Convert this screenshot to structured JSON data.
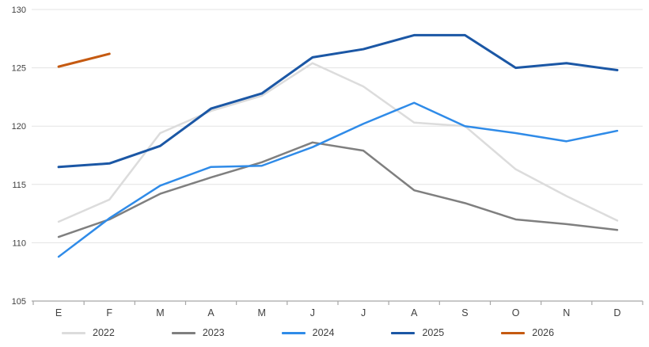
{
  "chart_data": {
    "type": "line",
    "title": "",
    "xlabel": "",
    "ylabel": "",
    "categories": [
      "E",
      "F",
      "M",
      "A",
      "M",
      "J",
      "J",
      "A",
      "S",
      "O",
      "N",
      "D"
    ],
    "series": [
      {
        "name": "2022",
        "color": "#dcdcdc",
        "width": 2.5,
        "values": [
          111.8,
          113.7,
          119.4,
          121.3,
          122.6,
          125.4,
          123.4,
          120.3,
          120.0,
          116.3,
          114.0,
          111.9
        ]
      },
      {
        "name": "2023",
        "color": "#7f7f7f",
        "width": 2.5,
        "values": [
          110.5,
          112.0,
          114.2,
          115.6,
          116.9,
          118.6,
          117.9,
          114.5,
          113.4,
          112.0,
          111.6,
          111.1
        ]
      },
      {
        "name": "2024",
        "color": "#2f8be8",
        "width": 2.5,
        "values": [
          108.8,
          112.1,
          114.9,
          116.5,
          116.6,
          118.2,
          120.2,
          122.0,
          120.0,
          119.4,
          118.7,
          119.6
        ]
      },
      {
        "name": "2025",
        "color": "#1b57a5",
        "width": 3,
        "values": [
          116.5,
          116.8,
          118.3,
          121.5,
          122.8,
          125.9,
          126.6,
          127.8,
          127.8,
          125.0,
          125.4,
          124.8
        ]
      },
      {
        "name": "2026",
        "color": "#c55a11",
        "width": 3,
        "values": [
          125.1,
          126.2,
          null,
          null,
          null,
          null,
          null,
          null,
          null,
          null,
          null,
          null
        ]
      }
    ],
    "ylim": [
      105,
      130
    ],
    "yticks": [
      105,
      110,
      115,
      120,
      125,
      130
    ],
    "grid": true,
    "legend_position": "bottom",
    "colors": {
      "gridline": "#e3e3e3",
      "axis": "#a6a6a6",
      "tick_label": "#404040"
    }
  }
}
